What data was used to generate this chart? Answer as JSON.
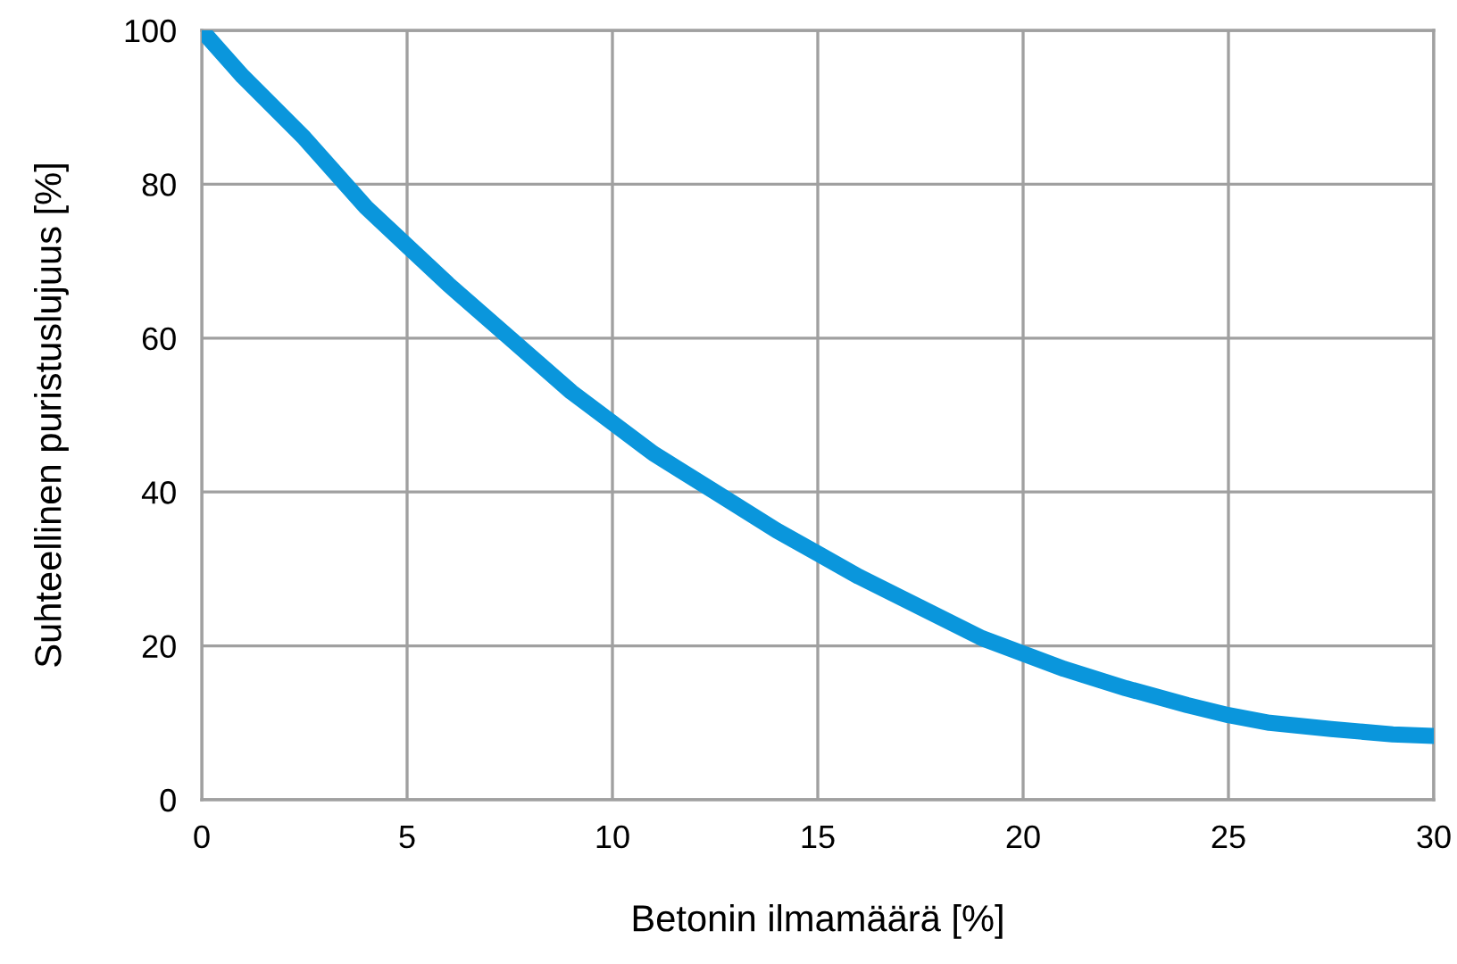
{
  "chart_data": {
    "type": "line",
    "xlabel": "Betonin ilmamäärä [%]",
    "ylabel": "Suhteellinen puristuslujuus [%]",
    "series": [
      {
        "color": "#0a96dc",
        "x": [
          0,
          1,
          2.5,
          4,
          5,
          6,
          7.5,
          9,
          10,
          11,
          12.5,
          14,
          15,
          16,
          17.5,
          19,
          20,
          21,
          22.5,
          24,
          25,
          26,
          27.5,
          29,
          30
        ],
        "values": [
          100,
          94,
          86,
          77,
          72,
          67,
          60,
          53,
          49,
          45,
          40,
          35,
          32,
          29,
          25,
          21,
          19,
          17,
          14.5,
          12.3,
          11,
          10,
          9.2,
          8.5,
          8.3
        ]
      }
    ],
    "xlim": [
      0,
      30
    ],
    "ylim": [
      0,
      100
    ],
    "xticks": [
      0,
      5,
      10,
      15,
      20,
      25,
      30
    ],
    "yticks": [
      0,
      20,
      40,
      60,
      80,
      100
    ],
    "grid": true,
    "marker": "none",
    "line_style": "solid"
  }
}
